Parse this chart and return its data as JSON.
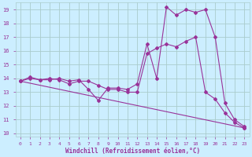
{
  "xlabel": "Windchill (Refroidissement éolien,°C)",
  "bg_color": "#cceeff",
  "grid_color": "#aacccc",
  "line_color": "#993399",
  "ylim": [
    9.8,
    19.5
  ],
  "xlim": [
    -0.5,
    23.5
  ],
  "yticks": [
    10,
    11,
    12,
    13,
    14,
    15,
    16,
    17,
    18,
    19
  ],
  "xticks": [
    0,
    1,
    2,
    3,
    4,
    5,
    6,
    7,
    8,
    9,
    10,
    11,
    12,
    13,
    14,
    15,
    16,
    17,
    18,
    19,
    20,
    21,
    22,
    23
  ],
  "line1_x": [
    0,
    1,
    2,
    3,
    4,
    5,
    6,
    7,
    8,
    9,
    10,
    11,
    12,
    13,
    14,
    15,
    16,
    17,
    18,
    19,
    20,
    21,
    22,
    23
  ],
  "line1_y": [
    13.8,
    14.1,
    13.9,
    13.9,
    14.0,
    13.8,
    13.9,
    13.2,
    12.4,
    13.3,
    13.3,
    13.2,
    13.6,
    16.5,
    14.0,
    19.2,
    18.6,
    19.0,
    18.8,
    19.0,
    17.0,
    12.2,
    11.0,
    10.5
  ],
  "line2_x": [
    0,
    1,
    2,
    3,
    4,
    5,
    6,
    7,
    8,
    9,
    10,
    11,
    12,
    13,
    14,
    15,
    16,
    17,
    18,
    19,
    20,
    21,
    22,
    23
  ],
  "line2_y": [
    13.8,
    14.0,
    13.9,
    14.0,
    13.9,
    13.6,
    13.8,
    13.8,
    13.5,
    13.2,
    13.2,
    13.0,
    13.0,
    15.8,
    16.2,
    16.5,
    16.3,
    16.7,
    17.0,
    13.0,
    12.5,
    11.5,
    10.8,
    10.4
  ],
  "line3_x": [
    0,
    23
  ],
  "line3_y": [
    13.8,
    10.4
  ]
}
